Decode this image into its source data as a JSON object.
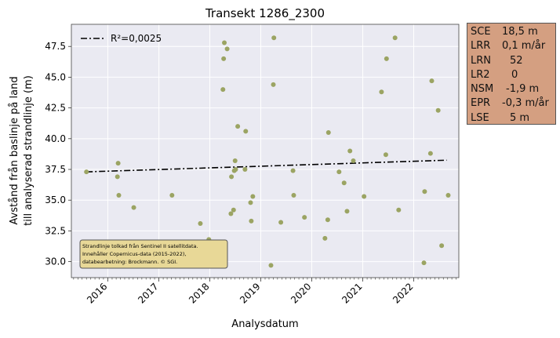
{
  "chart_data": {
    "type": "scatter",
    "title": "Transekt 1286_2300",
    "xlabel": "Analysdatum",
    "ylabel_lines": [
      "Avstånd från baslinje på land",
      "till analyserad strandlinje (m)"
    ],
    "xlim": [
      "2015-04-15",
      "2022-11-20"
    ],
    "ylim": [
      28.7,
      49.3
    ],
    "x_ticks": [
      "2016",
      "2017",
      "2018",
      "2019",
      "2020",
      "2021",
      "2022"
    ],
    "y_ticks": [
      "30.0",
      "32.5",
      "35.0",
      "37.5",
      "40.0",
      "42.5",
      "45.0",
      "47.5"
    ],
    "grid": true,
    "legend": {
      "position": "top-left",
      "entries": [
        "R²=0,0025"
      ]
    },
    "trend_line": {
      "x": [
        "2015-08-01",
        "2022-08-25"
      ],
      "y": [
        37.3,
        38.25
      ],
      "style": "dash-dot",
      "color": "#000000"
    },
    "series": [
      {
        "color": "#9ba463",
        "points": [
          {
            "x": "2015-08-01",
            "y": 37.3
          },
          {
            "x": "2016-03-10",
            "y": 36.9
          },
          {
            "x": "2016-03-15",
            "y": 38.0
          },
          {
            "x": "2016-03-20",
            "y": 35.4
          },
          {
            "x": "2016-07-05",
            "y": 34.4
          },
          {
            "x": "2017-04-05",
            "y": 35.4
          },
          {
            "x": "2017-10-25",
            "y": 33.1
          },
          {
            "x": "2017-12-25",
            "y": 31.8
          },
          {
            "x": "2018-04-05",
            "y": 44.0
          },
          {
            "x": "2018-04-10",
            "y": 46.5
          },
          {
            "x": "2018-04-15",
            "y": 47.8
          },
          {
            "x": "2018-05-05",
            "y": 47.3
          },
          {
            "x": "2018-06-01",
            "y": 33.9
          },
          {
            "x": "2018-06-05",
            "y": 36.9
          },
          {
            "x": "2018-06-20",
            "y": 34.2
          },
          {
            "x": "2018-06-25",
            "y": 37.4
          },
          {
            "x": "2018-07-01",
            "y": 38.2
          },
          {
            "x": "2018-07-05",
            "y": 37.5
          },
          {
            "x": "2018-07-20",
            "y": 41.0
          },
          {
            "x": "2018-09-10",
            "y": 37.5
          },
          {
            "x": "2018-09-15",
            "y": 40.6
          },
          {
            "x": "2018-10-20",
            "y": 34.8
          },
          {
            "x": "2018-10-25",
            "y": 33.3
          },
          {
            "x": "2018-11-05",
            "y": 35.3
          },
          {
            "x": "2019-03-15",
            "y": 29.7
          },
          {
            "x": "2019-04-01",
            "y": 44.4
          },
          {
            "x": "2019-04-05",
            "y": 48.2
          },
          {
            "x": "2019-05-25",
            "y": 33.2
          },
          {
            "x": "2019-08-20",
            "y": 37.4
          },
          {
            "x": "2019-08-25",
            "y": 35.4
          },
          {
            "x": "2019-11-10",
            "y": 33.6
          },
          {
            "x": "2020-04-05",
            "y": 31.9
          },
          {
            "x": "2020-04-25",
            "y": 33.4
          },
          {
            "x": "2020-04-30",
            "y": 40.5
          },
          {
            "x": "2020-07-15",
            "y": 37.3
          },
          {
            "x": "2020-08-20",
            "y": 36.4
          },
          {
            "x": "2020-09-10",
            "y": 34.1
          },
          {
            "x": "2020-10-01",
            "y": 39.0
          },
          {
            "x": "2020-10-25",
            "y": 38.2
          },
          {
            "x": "2021-01-10",
            "y": 35.3
          },
          {
            "x": "2021-05-15",
            "y": 43.8
          },
          {
            "x": "2021-06-15",
            "y": 38.7
          },
          {
            "x": "2021-06-20",
            "y": 46.5
          },
          {
            "x": "2021-08-20",
            "y": 48.2
          },
          {
            "x": "2021-09-15",
            "y": 34.2
          },
          {
            "x": "2022-03-15",
            "y": 29.9
          },
          {
            "x": "2022-03-20",
            "y": 35.7
          },
          {
            "x": "2022-05-01",
            "y": 38.8
          },
          {
            "x": "2022-05-10",
            "y": 44.7
          },
          {
            "x": "2022-06-25",
            "y": 42.3
          },
          {
            "x": "2022-07-20",
            "y": 31.3
          },
          {
            "x": "2022-09-05",
            "y": 35.4
          }
        ]
      }
    ],
    "annotation": {
      "lines": [
        "Strandlinje tolkad från Sentinel II satellitdata.",
        "Innehåller Copernicus-data (2015-2022),",
        "databearbetning: Brockmann. © SGI."
      ],
      "background": "#e8d897"
    }
  },
  "stats_box": {
    "background": "#d49f81",
    "rows": [
      {
        "key": "SCE",
        "value": "18,5 m"
      },
      {
        "key": "LRR",
        "value": "0,1 m/år"
      },
      {
        "key": "LRN",
        "value": "52"
      },
      {
        "key": "LR2",
        "value": "0"
      },
      {
        "key": "NSM",
        "value": "-1,9 m"
      },
      {
        "key": "EPR",
        "value": "-0,3 m/år"
      },
      {
        "key": "LSE",
        "value": "5 m"
      }
    ]
  },
  "colors": {
    "plot_background": "#eaeaf2",
    "grid": "#ffffff",
    "point": "#9ba463"
  }
}
